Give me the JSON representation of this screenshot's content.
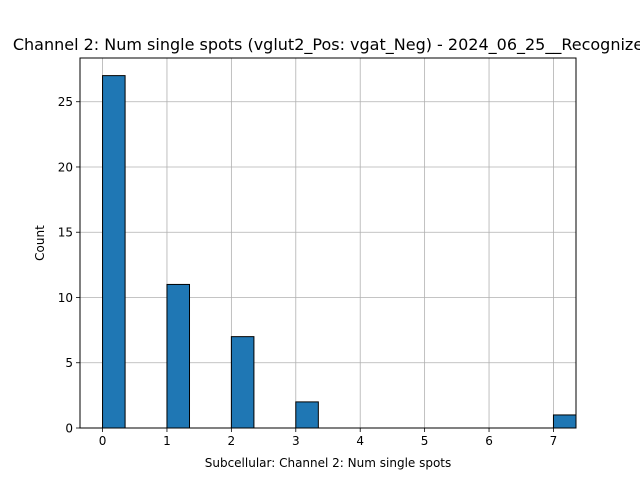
{
  "chart_data": {
    "type": "bar",
    "title": "Channel 2: Num single spots (vglut2_Pos: vgat_Neg) - 2024_06_25__Recognize",
    "xlabel": "Subcellular: Channel 2: Num single spots",
    "ylabel": "Count",
    "x_ticks": [
      0,
      1,
      2,
      3,
      4,
      5,
      6,
      7
    ],
    "y_ticks": [
      0,
      5,
      10,
      15,
      20,
      25
    ],
    "xlim": [
      -0.35,
      7.35
    ],
    "ylim": [
      0,
      28.35
    ],
    "bin_width": 0.35,
    "bars": [
      {
        "x": 0,
        "value": 27
      },
      {
        "x": 1,
        "value": 11
      },
      {
        "x": 2,
        "value": 7
      },
      {
        "x": 3,
        "value": 2
      },
      {
        "x": 7,
        "value": 1
      }
    ],
    "grid": true,
    "colors": {
      "bar": "#1f77b4",
      "edge": "#000000",
      "grid": "#b0b0b0"
    }
  }
}
